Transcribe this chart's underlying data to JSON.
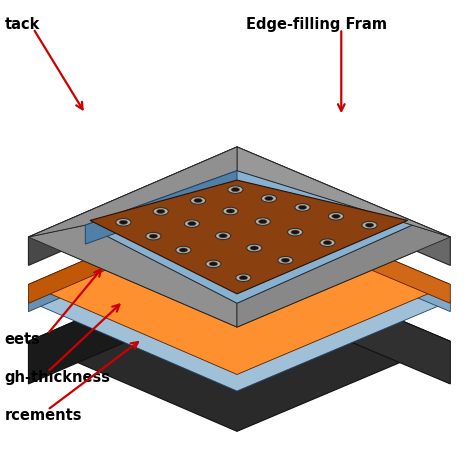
{
  "bg_color": "#ffffff",
  "labels": {
    "top_left": "tack",
    "top_right": "Edge-filling Fram",
    "bottom_left1": "eets",
    "bottom_left2": "gh-thickness",
    "bottom_left3": "rcements"
  },
  "colors": {
    "base_top": "#2a2a2a",
    "base_left": "#1a1a1a",
    "base_right": "#303030",
    "blue_top": "#a0c0d8",
    "blue_left": "#6890b0",
    "blue_right": "#80a8c8",
    "orange_top": "#ff9030",
    "orange_left": "#c05808",
    "orange_right": "#d06818",
    "gray_top": "#909090",
    "gray_left": "#484848",
    "gray_right": "#686868",
    "inner_blue": "#88b0d0",
    "brown_top": "#8b4010",
    "hole_ring": "#b8b0a0",
    "hole_dark": "#1a1010",
    "arrow": "#cc0000"
  }
}
